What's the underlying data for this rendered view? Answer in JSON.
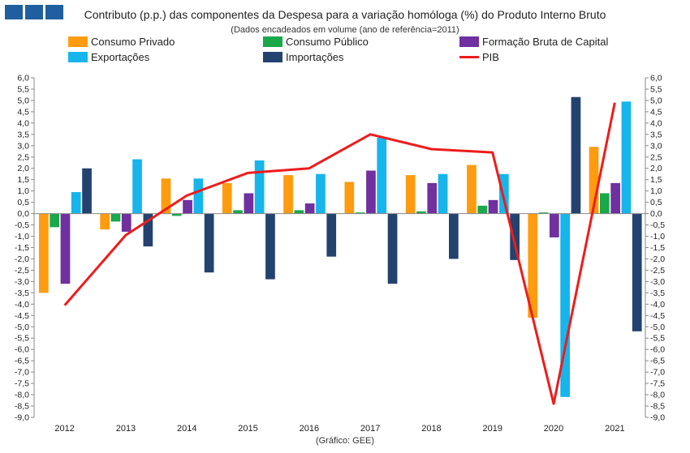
{
  "header": {
    "logo_colors": [
      "#1f5fa0",
      "#1f5fa0",
      "#1f5fa0"
    ]
  },
  "colors": {
    "consumo_privado": "#ff9b0f",
    "consumo_publico": "#19a84a",
    "formacao_bruta": "#7030a0",
    "exportacoes": "#16b5ec",
    "importacoes": "#23426f",
    "pib": "#ee1c1c"
  },
  "source_note": "(Gráfico: GEE)",
  "chart_data": {
    "type": "bar",
    "title": "Contributo (p.p.) das componentes da Despesa para a variação homóloga (%) do Produto Interno Bruto",
    "subtitle": "(Dados encadeados em volume (ano de referência=2011)",
    "xlabel": "",
    "ylabel": "",
    "ylim": [
      -9.0,
      6.0
    ],
    "ytick_step": 0.5,
    "ytick_labels": [
      "6,0",
      "5,5",
      "5,0",
      "4,5",
      "4,0",
      "3,5",
      "3,0",
      "2,5",
      "2,0",
      "1,5",
      "1,0",
      "0,5",
      "0,0",
      "-0,5",
      "-1,0",
      "-1,5",
      "-2,0",
      "-2,5",
      "-3,0",
      "-3,5",
      "-4,0",
      "-4,5",
      "-5,0",
      "-5,5",
      "-6,0",
      "-6,5",
      "-7,0",
      "-7,5",
      "-8,0",
      "-8,5",
      "-9,0"
    ],
    "categories": [
      "2012",
      "2013",
      "2014",
      "2015",
      "2016",
      "2017",
      "2018",
      "2019",
      "2020",
      "2021"
    ],
    "legend_position": "top",
    "series": [
      {
        "name": "Consumo Privado",
        "kind": "bar",
        "color_key": "consumo_privado",
        "values": [
          -3.5,
          -0.7,
          1.55,
          1.35,
          1.7,
          1.4,
          1.7,
          2.15,
          -4.6,
          2.95
        ]
      },
      {
        "name": "Consumo Público",
        "kind": "bar",
        "color_key": "consumo_publico",
        "values": [
          -0.6,
          -0.35,
          -0.1,
          0.15,
          0.15,
          0.05,
          0.1,
          0.35,
          0.05,
          0.9
        ]
      },
      {
        "name": "Formação Bruta de Capital",
        "kind": "bar",
        "color_key": "formacao_bruta",
        "values": [
          -3.1,
          -0.8,
          0.6,
          0.9,
          0.45,
          1.9,
          1.35,
          0.6,
          -1.05,
          1.35
        ]
      },
      {
        "name": "Exportações",
        "kind": "bar",
        "color_key": "exportacoes",
        "values": [
          0.95,
          2.4,
          1.55,
          2.35,
          1.75,
          3.35,
          1.75,
          1.75,
          -8.1,
          4.95
        ]
      },
      {
        "name": "Importações",
        "kind": "bar",
        "color_key": "importacoes",
        "values": [
          2.0,
          -1.45,
          -2.6,
          -2.9,
          -1.9,
          -3.1,
          -2.0,
          -2.05,
          5.15,
          -5.2
        ]
      },
      {
        "name": "PIB",
        "kind": "line",
        "color_key": "pib",
        "values": [
          -4.05,
          -0.95,
          0.8,
          1.8,
          2.0,
          3.5,
          2.85,
          2.7,
          -8.4,
          4.9
        ]
      }
    ]
  }
}
